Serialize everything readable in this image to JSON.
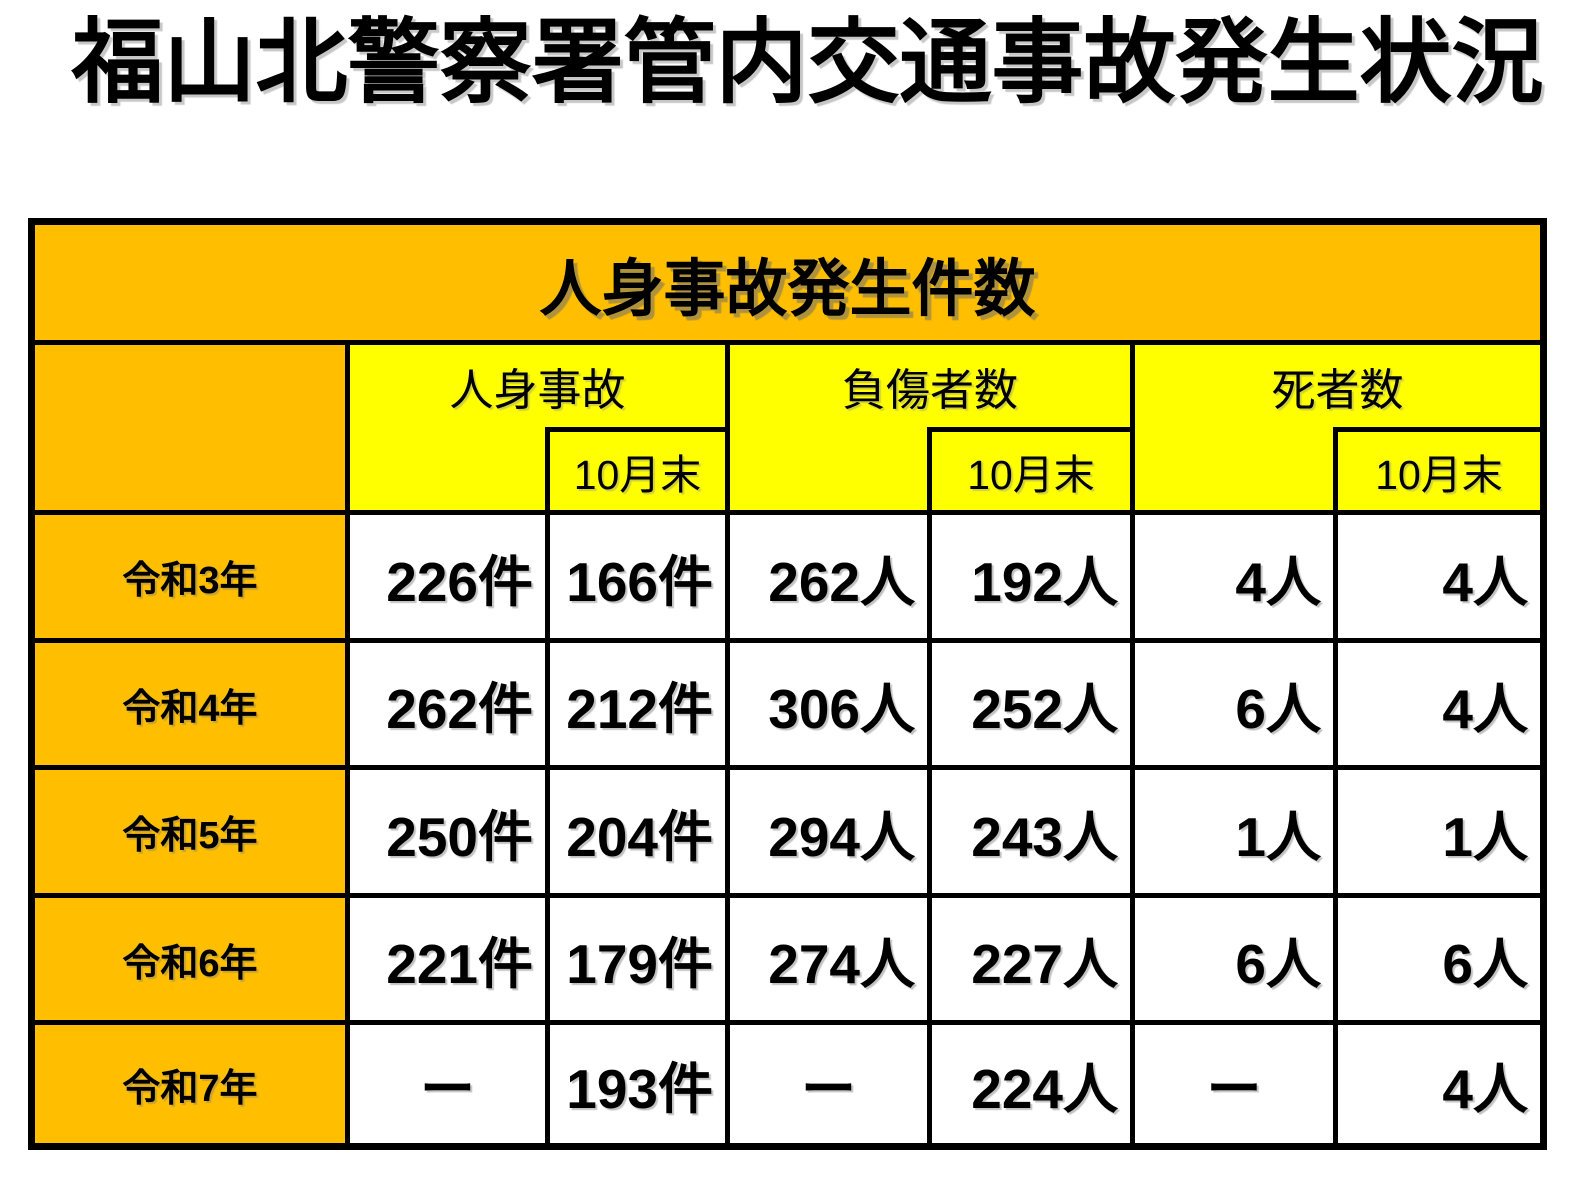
{
  "page": {
    "title": "福山北警察署管内交通事故発生状況"
  },
  "table": {
    "band_title": "人身事故発生件数",
    "colors": {
      "header_orange": "#FFBF00",
      "header_yellow": "#FFFF00",
      "border": "#000000",
      "cell_background": "#FFFFFF"
    },
    "groups": [
      {
        "label": "人身事故",
        "sublabel": "10月末"
      },
      {
        "label": "負傷者数",
        "sublabel": "10月末"
      },
      {
        "label": "死者数",
        "sublabel": "10月末"
      }
    ],
    "rows": [
      {
        "year": "令和3年",
        "cells": [
          {
            "v": "226件",
            "align": "right"
          },
          {
            "v": "166件",
            "align": "right"
          },
          {
            "v": "262人",
            "align": "right"
          },
          {
            "v": "192人",
            "align": "right"
          },
          {
            "v": "4人",
            "align": "right"
          },
          {
            "v": "4人",
            "align": "right"
          }
        ]
      },
      {
        "year": "令和4年",
        "cells": [
          {
            "v": "262件",
            "align": "right"
          },
          {
            "v": "212件",
            "align": "right"
          },
          {
            "v": "306人",
            "align": "right"
          },
          {
            "v": "252人",
            "align": "right"
          },
          {
            "v": "6人",
            "align": "right"
          },
          {
            "v": "4人",
            "align": "right"
          }
        ]
      },
      {
        "year": "令和5年",
        "cells": [
          {
            "v": "250件",
            "align": "right"
          },
          {
            "v": "204件",
            "align": "right"
          },
          {
            "v": "294人",
            "align": "right"
          },
          {
            "v": "243人",
            "align": "right"
          },
          {
            "v": "1人",
            "align": "right"
          },
          {
            "v": "1人",
            "align": "right"
          }
        ]
      },
      {
        "year": "令和6年",
        "cells": [
          {
            "v": "221件",
            "align": "right"
          },
          {
            "v": "179件",
            "align": "right"
          },
          {
            "v": "274人",
            "align": "right"
          },
          {
            "v": "227人",
            "align": "right"
          },
          {
            "v": "6人",
            "align": "right"
          },
          {
            "v": "6人",
            "align": "right"
          }
        ]
      },
      {
        "year": "令和7年",
        "cells": [
          {
            "v": "ー",
            "align": "center"
          },
          {
            "v": "193件",
            "align": "right"
          },
          {
            "v": "ー",
            "align": "center"
          },
          {
            "v": "224人",
            "align": "right"
          },
          {
            "v": "ー",
            "align": "center"
          },
          {
            "v": "4人",
            "align": "right"
          }
        ]
      }
    ]
  }
}
